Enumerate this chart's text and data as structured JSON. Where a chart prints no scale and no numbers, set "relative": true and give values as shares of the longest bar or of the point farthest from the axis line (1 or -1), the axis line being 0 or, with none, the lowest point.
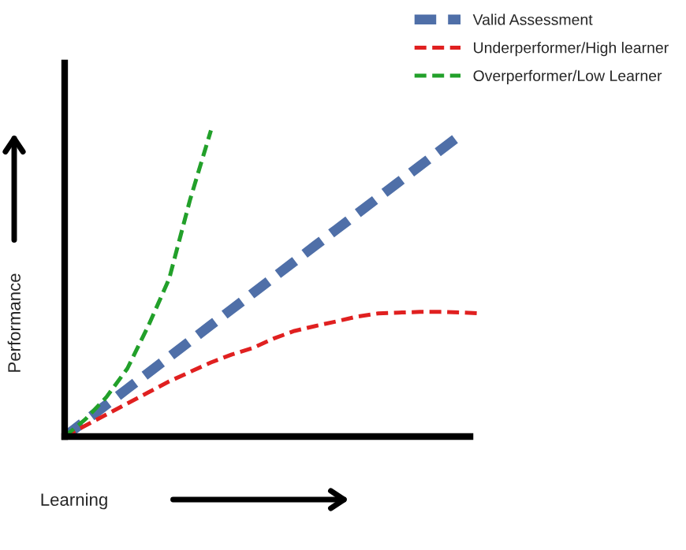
{
  "chart_data": {
    "type": "line",
    "relative": true,
    "xlabel": "Learning",
    "ylabel": "Performance",
    "legend": "top right",
    "line_style": "dashed",
    "marker": "none",
    "categories": [
      null,
      null,
      null,
      null,
      null,
      null,
      null,
      null,
      null,
      null,
      null,
      null,
      null,
      null,
      null,
      null,
      null,
      null,
      null,
      null,
      null
    ],
    "series": [
      {
        "name": "Valid Assessment",
        "color": "#4f6fa8",
        "values": [
          0,
          0.052,
          0.104,
          0.156,
          0.208,
          0.26,
          0.312,
          0.364,
          0.416,
          0.468,
          0.52,
          0.572,
          0.624,
          0.676,
          0.728,
          0.78,
          0.832,
          0.884,
          0.936,
          0.988,
          null
        ]
      },
      {
        "name": "Underperformer/High learner",
        "color": "#e02020",
        "values": [
          0,
          0.036,
          0.072,
          0.108,
          0.144,
          0.18,
          0.211,
          0.242,
          0.268,
          0.289,
          0.32,
          0.345,
          0.361,
          0.376,
          0.392,
          0.402,
          0.405,
          0.407,
          0.407,
          0.405,
          0.402
        ]
      },
      {
        "name": "Overperformer/Low Learner",
        "color": "#22a02a",
        "values": [
          0,
          0.057,
          0.129,
          0.222,
          0.361,
          0.515,
          0.773,
          1.0,
          null,
          null,
          null,
          null,
          null,
          null,
          null,
          null,
          null,
          null,
          null,
          null,
          null
        ]
      }
    ]
  }
}
